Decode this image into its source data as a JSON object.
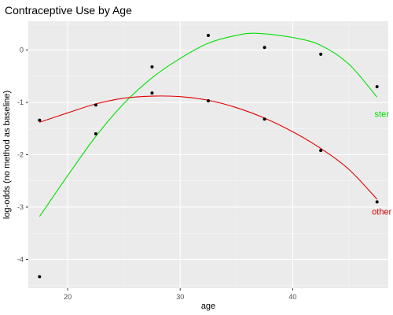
{
  "chart_data": {
    "type": "scatter",
    "title": "Contraceptive Use by Age",
    "xlabel": "age",
    "ylabel": "log-odds (no method as baseline)",
    "xlim": [
      16.5,
      48.5
    ],
    "ylim": [
      -4.55,
      0.55
    ],
    "x_ticks": [
      20,
      30,
      40
    ],
    "y_ticks": [
      0,
      -1,
      -2,
      -3,
      -4
    ],
    "grid": true,
    "legend": "none",
    "background": "#EBEBEB",
    "series": [
      {
        "name": "ster",
        "color": "#00E000",
        "points": {
          "x": [
            17.5,
            22.5,
            27.5,
            32.5,
            37.5,
            42.5,
            47.5
          ],
          "y": [
            -4.33,
            -1.6,
            -0.32,
            0.28,
            0.05,
            -0.08,
            -0.7
          ]
        },
        "fit_curve": {
          "x": [
            17.5,
            20,
            22.5,
            25,
            27.5,
            30,
            32.5,
            35,
            36.8,
            40,
            42.5,
            45,
            47.5
          ],
          "y": [
            -3.18,
            -2.4,
            -1.65,
            -1.02,
            -0.53,
            -0.16,
            0.13,
            0.28,
            0.32,
            0.24,
            0.09,
            -0.27,
            -0.9
          ]
        },
        "label_anchor": {
          "x": 47.5,
          "y": -1.22
        }
      },
      {
        "name": "other",
        "color": "#E00000",
        "points": {
          "x": [
            17.5,
            22.5,
            27.5,
            32.5,
            37.5,
            42.5,
            47.5
          ],
          "y": [
            -1.34,
            -1.05,
            -0.82,
            -0.97,
            -1.32,
            -1.92,
            -2.9
          ]
        },
        "fit_curve": {
          "x": [
            17.5,
            20,
            22.5,
            25,
            27.5,
            30,
            32.5,
            35,
            37.5,
            40,
            42.5,
            45,
            47.5
          ],
          "y": [
            -1.38,
            -1.2,
            -1.03,
            -0.92,
            -0.88,
            -0.89,
            -0.96,
            -1.1,
            -1.3,
            -1.56,
            -1.88,
            -2.28,
            -2.85
          ]
        },
        "label_anchor": {
          "x": 47.5,
          "y": -3.08
        }
      }
    ]
  }
}
